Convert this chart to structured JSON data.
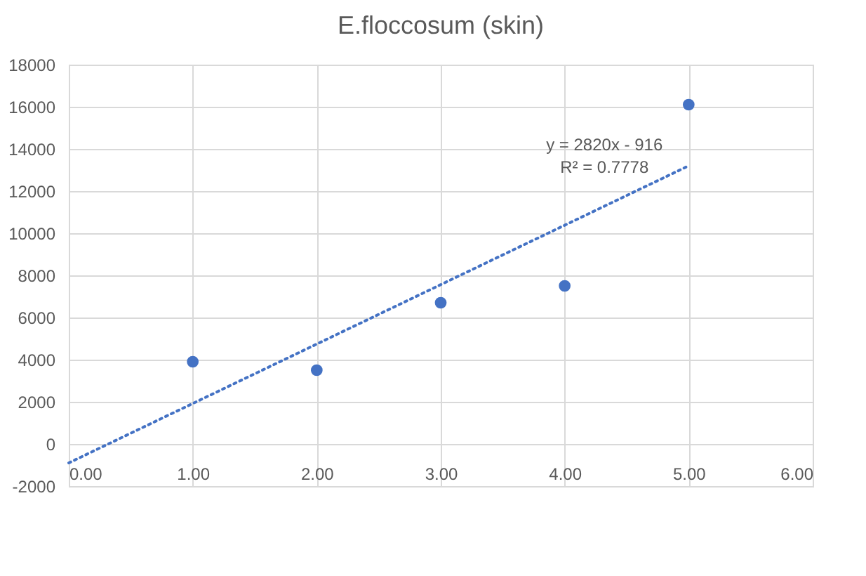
{
  "chart_data": {
    "type": "scatter",
    "title": "E.floccosum (skin)",
    "x": [
      1,
      2,
      3,
      4,
      5
    ],
    "series": [
      {
        "color": "#4472c4",
        "marker": "circle",
        "values": [
          3900,
          3500,
          6700,
          7500,
          16100
        ]
      },
      {
        "type": "line",
        "color": "#4472c4",
        "line_style": "dotted",
        "marker": "none",
        "x": [
          0,
          5
        ],
        "values": [
          -900,
          13200
        ]
      }
    ],
    "xlim": [
      0,
      6
    ],
    "xticks": [
      {
        "value": 0,
        "label": "0.00"
      },
      {
        "value": 1,
        "label": "1.00"
      },
      {
        "value": 2,
        "label": "2.00"
      },
      {
        "value": 3,
        "label": "3.00"
      },
      {
        "value": 4,
        "label": "4.00"
      },
      {
        "value": 5,
        "label": "5.00"
      },
      {
        "value": 6,
        "label": "6.00"
      }
    ],
    "ylim": [
      -2000,
      18000
    ],
    "yticks": [
      -2000,
      0,
      2000,
      4000,
      6000,
      8000,
      10000,
      12000,
      14000,
      16000,
      18000
    ],
    "annotations": [
      "y = 2820x - 916",
      "R² = 0.7778"
    ],
    "grid": true
  }
}
